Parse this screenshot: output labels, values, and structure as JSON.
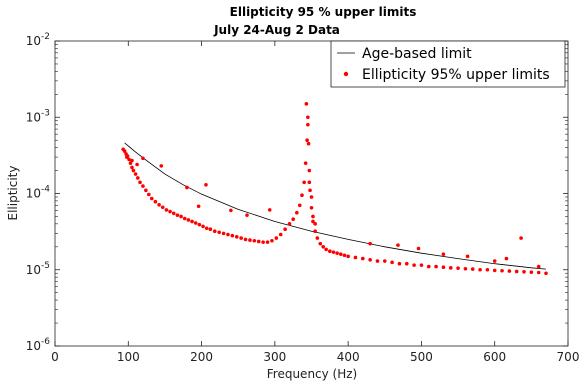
{
  "chart_data": {
    "type": "scatter",
    "title": "Ellipticity 95 % upper limits",
    "subtitle": "July 24-Aug 2 Data",
    "xlabel": "Frequency (Hz)",
    "ylabel": "Ellipticity",
    "xlim": [
      0,
      700
    ],
    "ylim": [
      1e-06,
      0.01
    ],
    "yscale": "log",
    "x_ticks": [
      "0",
      "100",
      "200",
      "300",
      "400",
      "500",
      "600",
      "700"
    ],
    "y_ticks": [
      {
        "base": "10",
        "exp": "-6"
      },
      {
        "base": "10",
        "exp": "-5"
      },
      {
        "base": "10",
        "exp": "-4"
      },
      {
        "base": "10",
        "exp": "-3"
      },
      {
        "base": "10",
        "exp": "-2"
      }
    ],
    "legend_position": "top-right",
    "series": [
      {
        "name": "Age-based limit",
        "kind": "line",
        "color": "#000000",
        "x": [
          95,
          110,
          125,
          150,
          175,
          200,
          250,
          300,
          350,
          400,
          450,
          500,
          550,
          600,
          650,
          670
        ],
        "y": [
          0.00046,
          0.00035,
          0.00027,
          0.00018,
          0.00013,
          9.8e-05,
          6.2e-05,
          4.3e-05,
          3.2e-05,
          2.5e-05,
          2e-05,
          1.65e-05,
          1.4e-05,
          1.2e-05,
          1.06e-05,
          1.02e-05
        ]
      },
      {
        "name": "Ellipticity 95% upper limits",
        "kind": "scatter",
        "color": "#ff0000",
        "x": [
          93,
          95,
          97,
          99,
          101,
          103,
          105,
          107,
          110,
          113,
          116,
          120,
          124,
          128,
          132,
          137,
          142,
          147,
          152,
          157,
          162,
          167,
          172,
          177,
          182,
          187,
          192,
          197,
          202,
          207,
          212,
          218,
          224,
          230,
          236,
          242,
          248,
          254,
          260,
          266,
          272,
          278,
          284,
          290,
          296,
          302,
          308,
          314,
          320,
          325,
          330,
          334,
          337,
          340,
          342,
          344,
          345,
          346,
          347,
          348,
          350,
          352,
          355,
          358,
          362,
          366,
          370,
          375,
          380,
          385,
          390,
          395,
          400,
          410,
          420,
          430,
          440,
          450,
          460,
          470,
          480,
          490,
          500,
          510,
          520,
          530,
          540,
          550,
          560,
          570,
          580,
          590,
          600,
          610,
          620,
          630,
          640,
          650,
          660,
          670,
          98,
          105,
          112,
          120,
          145,
          180,
          196,
          206,
          240,
          262,
          293,
          343,
          345,
          347,
          350,
          352,
          355,
          430,
          468,
          496,
          530,
          563,
          600,
          616,
          636,
          660
        ],
        "y": [
          0.00038,
          0.00036,
          0.00033,
          0.00031,
          0.00028,
          0.00025,
          0.00022,
          0.0002,
          0.00018,
          0.00016,
          0.00014,
          0.000125,
          0.00011,
          9.7e-05,
          8.6e-05,
          7.8e-05,
          7.1e-05,
          6.6e-05,
          6.1e-05,
          5.8e-05,
          5.5e-05,
          5.2e-05,
          5e-05,
          4.7e-05,
          4.5e-05,
          4.3e-05,
          4.1e-05,
          3.9e-05,
          3.7e-05,
          3.5e-05,
          3.4e-05,
          3.2e-05,
          3.1e-05,
          3e-05,
          2.9e-05,
          2.8e-05,
          2.7e-05,
          2.6e-05,
          2.5e-05,
          2.45e-05,
          2.4e-05,
          2.35e-05,
          2.3e-05,
          2.3e-05,
          2.4e-05,
          2.6e-05,
          2.9e-05,
          3.4e-05,
          4e-05,
          4.6e-05,
          5.6e-05,
          7e-05,
          9.5e-05,
          0.00014,
          0.00025,
          0.0005,
          0.001,
          0.00045,
          0.0002,
          0.00011,
          6.5e-05,
          4.3e-05,
          3.2e-05,
          2.6e-05,
          2.2e-05,
          2e-05,
          1.85e-05,
          1.75e-05,
          1.7e-05,
          1.65e-05,
          1.6e-05,
          1.55e-05,
          1.5e-05,
          1.45e-05,
          1.4e-05,
          1.35e-05,
          1.3e-05,
          1.3e-05,
          1.25e-05,
          1.2e-05,
          1.2e-05,
          1.15e-05,
          1.15e-05,
          1.1e-05,
          1.1e-05,
          1.08e-05,
          1.06e-05,
          1.05e-05,
          1.03e-05,
          1.02e-05,
          1e-05,
          1e-05,
          9.8e-06,
          9.7e-06,
          9.6e-06,
          9.5e-06,
          9.4e-06,
          9.3e-06,
          9.2e-06,
          9e-06,
          0.0003,
          0.00027,
          0.00024,
          0.00029,
          0.00023,
          0.00012,
          6.8e-05,
          0.00013,
          6e-05,
          5.2e-05,
          6.1e-05,
          0.0015,
          0.0008,
          0.00014,
          9e-05,
          5e-05,
          4e-05,
          2.2e-05,
          2.1e-05,
          1.9e-05,
          1.6e-05,
          1.5e-05,
          1.3e-05,
          1.4e-05,
          2.6e-05,
          1.1e-05
        ]
      }
    ]
  }
}
